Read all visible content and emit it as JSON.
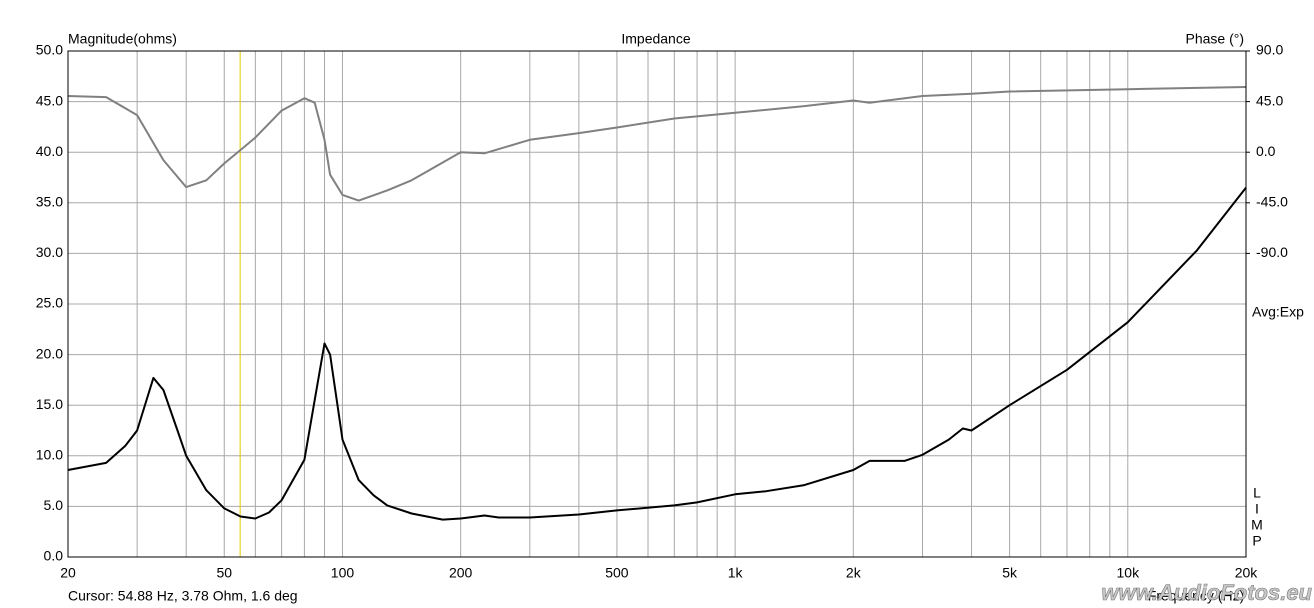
{
  "chart_data": {
    "type": "line",
    "title": "Impedance",
    "y_label": "Magnitude(ohms)",
    "y2_label": "Phase (°)",
    "x_label": "Frequency (Hz)",
    "averaging": "Avg:Exp",
    "side_label": [
      "L",
      "I",
      "M",
      "P"
    ],
    "watermark": "www.AudioFotos.eu",
    "xscale": "log",
    "xlim": [
      20,
      20000
    ],
    "xticks": [
      20,
      50,
      100,
      200,
      500,
      {
        "value": 1000,
        "label": "1k"
      },
      {
        "value": 2000,
        "label": "2k"
      },
      {
        "value": 5000,
        "label": "5k"
      },
      {
        "value": 10000,
        "label": "10k"
      },
      {
        "value": 20000,
        "label": "20k"
      }
    ],
    "xgrid": [
      30,
      40,
      60,
      70,
      80,
      90,
      300,
      400,
      600,
      700,
      800,
      900,
      3000,
      4000,
      6000,
      7000,
      8000,
      9000
    ],
    "ylim": [
      0,
      50
    ],
    "yticks": [
      {
        "value": 0,
        "label": "0.0"
      },
      {
        "value": 5,
        "label": "5.0"
      },
      {
        "value": 10,
        "label": "10.0"
      },
      {
        "value": 15,
        "label": "15.0"
      },
      {
        "value": 20,
        "label": "20.0"
      },
      {
        "value": 25,
        "label": "25.0"
      },
      {
        "value": 30,
        "label": "30.0"
      },
      {
        "value": 35,
        "label": "35.0"
      },
      {
        "value": 40,
        "label": "40.0"
      },
      {
        "value": 45,
        "label": "45.0"
      },
      {
        "value": 50,
        "label": "50.0"
      }
    ],
    "y2lim": [
      -360,
      90
    ],
    "y2ticks": [
      {
        "value": 90,
        "label": "90.0"
      },
      {
        "value": 45,
        "label": "45.0"
      },
      {
        "value": 0,
        "label": "0.0"
      },
      {
        "value": -45,
        "label": "-45.0"
      },
      {
        "value": -90,
        "label": "-90.0"
      }
    ],
    "grid": true,
    "cursor": {
      "x": 54.88,
      "label": "Cursor: 54.88 Hz, 3.78 Ohm, 1.6 deg",
      "color": "#e8c800"
    },
    "series": [
      {
        "color": "#808080",
        "axis": "y2",
        "x": [
          20,
          25,
          30,
          35,
          40,
          45,
          50,
          55,
          60,
          70,
          80,
          85,
          90,
          93,
          100,
          110,
          130,
          150,
          200,
          230,
          300,
          400,
          500,
          700,
          1000,
          1500,
          2000,
          2200,
          3000,
          4000,
          5000,
          10000,
          20000
        ],
        "values": [
          50,
          49,
          33,
          -7,
          -31,
          -25,
          -10,
          2,
          13,
          37,
          48,
          44,
          11,
          -20,
          -38,
          -43,
          -34,
          -25,
          0,
          -1,
          11,
          17,
          22,
          30,
          35,
          41,
          46,
          44,
          50,
          52,
          54,
          56,
          58
        ]
      },
      {
        "color": "#000000",
        "x": [
          20,
          25,
          28,
          30,
          33,
          35,
          38,
          40,
          45,
          50,
          55,
          60,
          65,
          70,
          80,
          85,
          90,
          93,
          100,
          110,
          120,
          130,
          150,
          180,
          200,
          230,
          250,
          300,
          400,
          500,
          700,
          800,
          1000,
          1200,
          1500,
          2000,
          2200,
          2700,
          3000,
          3500,
          3800,
          4000,
          5000,
          7000,
          10000,
          15000,
          20000
        ],
        "values": [
          8.6,
          9.3,
          11,
          12.5,
          17.7,
          16.5,
          12.5,
          10,
          6.6,
          4.8,
          4.0,
          3.8,
          4.4,
          5.6,
          9.6,
          15.5,
          21.1,
          20,
          11.6,
          7.6,
          6.1,
          5.1,
          4.3,
          3.7,
          3.8,
          4.1,
          3.9,
          3.9,
          4.2,
          4.6,
          5.1,
          5.4,
          6.2,
          6.5,
          7.1,
          8.6,
          9.5,
          9.5,
          10.1,
          11.6,
          12.7,
          12.5,
          15,
          18.5,
          23.2,
          30.3,
          36.5
        ]
      }
    ]
  }
}
